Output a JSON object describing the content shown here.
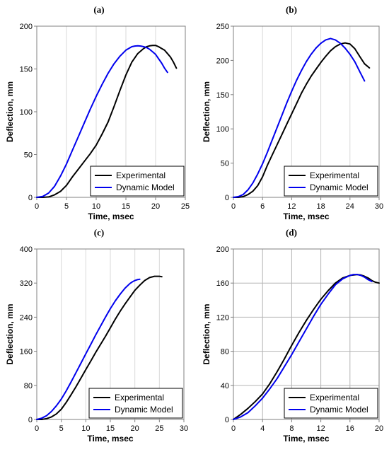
{
  "chart_data": [
    {
      "type": "line",
      "panel_label": "(a)",
      "xlabel": "Time, msec",
      "ylabel": "Deflection, mm",
      "xlim": [
        0,
        25
      ],
      "ylim": [
        0,
        200
      ],
      "xticks": [
        0,
        5,
        10,
        15,
        20,
        25
      ],
      "yticks": [
        0,
        50,
        100,
        150,
        200
      ],
      "grid": "vertical",
      "legend": "bottom-right",
      "series": [
        {
          "name": "Experimental",
          "color": "#000000",
          "x": [
            0,
            1,
            2,
            3,
            4,
            5,
            6,
            7,
            8,
            9,
            10,
            11,
            12,
            13,
            14,
            15,
            16,
            17,
            18,
            18.5,
            19,
            19.5,
            20,
            20.5,
            21,
            21.5,
            22,
            22.5,
            23,
            23.5
          ],
          "y": [
            0,
            0,
            0.5,
            3,
            7,
            14,
            24,
            33,
            42,
            51,
            61,
            74,
            88,
            106,
            125,
            143,
            158,
            168,
            174,
            176,
            177,
            177.5,
            177.5,
            176,
            174,
            172,
            168,
            164,
            158,
            151
          ]
        },
        {
          "name": "Dynamic Model",
          "color": "#0000ee",
          "x": [
            0,
            1,
            2,
            3,
            4,
            5,
            6,
            7,
            8,
            9,
            10,
            11,
            12,
            13,
            14,
            15,
            16,
            16.5,
            17,
            17.5,
            18,
            18.5,
            19,
            19.5,
            20,
            20.5,
            21,
            21.5,
            22
          ],
          "y": [
            0,
            1,
            5,
            13,
            25,
            39,
            55,
            71,
            87,
            103,
            118,
            132,
            145,
            156,
            165,
            172,
            176,
            176.8,
            177,
            176.8,
            176,
            175,
            173,
            170,
            167,
            162,
            157,
            151,
            146
          ]
        }
      ]
    },
    {
      "type": "line",
      "panel_label": "(b)",
      "xlabel": "Time, msec",
      "ylabel": "Deflection, mm",
      "xlim": [
        0,
        30
      ],
      "ylim": [
        0,
        250
      ],
      "xticks": [
        0,
        6,
        12,
        18,
        24,
        30
      ],
      "yticks": [
        0,
        50,
        100,
        150,
        200,
        250
      ],
      "grid": "vertical",
      "legend": "bottom-right",
      "series": [
        {
          "name": "Experimental",
          "color": "#000000",
          "x": [
            0,
            1,
            2,
            3,
            4,
            5,
            6,
            7,
            8,
            9,
            10,
            11,
            12,
            13,
            14,
            15,
            16,
            17,
            18,
            19,
            20,
            21,
            22,
            23,
            24,
            25,
            26,
            27,
            28
          ],
          "y": [
            0,
            0,
            1,
            4,
            9,
            17,
            30,
            47,
            62,
            77,
            92,
            107,
            122,
            137,
            152,
            165,
            177,
            187,
            197,
            206,
            214,
            220,
            224,
            225.5,
            224,
            217,
            206,
            195,
            189
          ]
        },
        {
          "name": "Dynamic Model",
          "color": "#0000ee",
          "x": [
            0,
            1,
            2,
            3,
            4,
            5,
            6,
            7,
            8,
            9,
            10,
            11,
            12,
            13,
            14,
            15,
            16,
            17,
            18,
            19,
            20,
            21,
            22,
            23,
            24,
            25,
            26,
            27
          ],
          "y": [
            0,
            1,
            4,
            11,
            21,
            34,
            49,
            66,
            84,
            102,
            120,
            138,
            155,
            171,
            185,
            198,
            209,
            218,
            225,
            230,
            232,
            230,
            225,
            218,
            209,
            198,
            184,
            170
          ]
        }
      ]
    },
    {
      "type": "line",
      "panel_label": "(c)",
      "xlabel": "Time, msec",
      "ylabel": "Deflection, mm",
      "xlim": [
        0,
        30
      ],
      "ylim": [
        0,
        400
      ],
      "xticks": [
        0,
        5,
        10,
        15,
        20,
        25,
        30
      ],
      "yticks": [
        0,
        80,
        160,
        240,
        320,
        400
      ],
      "grid": "vertical",
      "legend": "bottom-right",
      "series": [
        {
          "name": "Experimental",
          "color": "#000000",
          "x": [
            0,
            1,
            2,
            3,
            4,
            5,
            6,
            7,
            8,
            9,
            10,
            11,
            12,
            13,
            14,
            15,
            16,
            17,
            18,
            19,
            20,
            21,
            22,
            23,
            24,
            25,
            25.5
          ],
          "y": [
            0,
            0,
            2,
            6,
            13,
            24,
            40,
            58,
            77,
            97,
            117,
            137,
            157,
            176,
            195,
            215,
            235,
            254,
            271,
            287,
            303,
            315,
            326,
            333,
            336,
            336,
            335
          ]
        },
        {
          "name": "Dynamic Model",
          "color": "#0000ee",
          "x": [
            0,
            1,
            2,
            3,
            4,
            5,
            6,
            7,
            8,
            9,
            10,
            11,
            12,
            13,
            14,
            15,
            16,
            17,
            18,
            19,
            19.5,
            20,
            20.5,
            21
          ],
          "y": [
            0,
            3,
            9,
            19,
            32,
            48,
            67,
            88,
            110,
            132,
            154,
            176,
            198,
            219,
            240,
            260,
            278,
            294,
            308,
            319,
            323,
            326,
            328,
            329
          ]
        }
      ]
    },
    {
      "type": "line",
      "panel_label": "(d)",
      "xlabel": "Time, msec",
      "ylabel": "Deflection, mm",
      "xlim": [
        0,
        20
      ],
      "ylim": [
        0,
        200
      ],
      "xticks": [
        0,
        4,
        8,
        12,
        16,
        20
      ],
      "yticks": [
        0,
        40,
        80,
        120,
        160,
        200
      ],
      "grid": "both",
      "legend": "bottom-right",
      "series": [
        {
          "name": "Experimental",
          "color": "#000000",
          "x": [
            0,
            1,
            2,
            3,
            4,
            5,
            6,
            7,
            8,
            9,
            10,
            11,
            12,
            13,
            14,
            15,
            16,
            17,
            17.5,
            18,
            18.5,
            19,
            19.5,
            20
          ],
          "y": [
            0,
            6,
            13,
            21,
            30,
            42,
            56,
            71,
            87,
            102,
            116,
            129,
            141,
            151,
            160,
            166,
            169,
            170,
            169.5,
            168,
            166,
            163,
            161,
            160
          ]
        },
        {
          "name": "Dynamic Model",
          "color": "#0000ee",
          "x": [
            0,
            1,
            2,
            3,
            4,
            5,
            6,
            7,
            8,
            9,
            10,
            11,
            12,
            13,
            14,
            15,
            16,
            16.5,
            17,
            17.5,
            18,
            18.5,
            19
          ],
          "y": [
            0,
            3,
            8,
            16,
            25,
            36,
            48,
            62,
            76,
            91,
            106,
            121,
            135,
            147,
            158,
            165,
            169,
            170,
            170,
            169,
            167,
            164,
            162
          ]
        }
      ]
    }
  ]
}
